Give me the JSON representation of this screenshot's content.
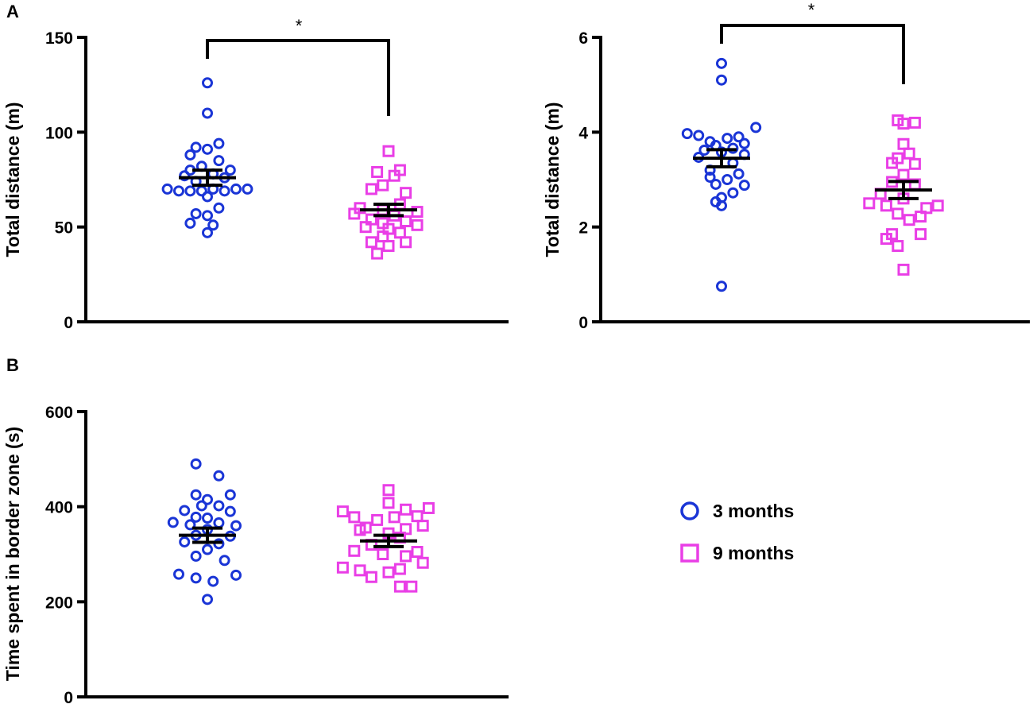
{
  "figure": {
    "panel_labels": [
      "A",
      "B"
    ],
    "colors": {
      "three_months": "#1a35d6",
      "nine_months": "#e93ee6",
      "axis": "#000000"
    },
    "legend": {
      "items": [
        {
          "label": "3 months",
          "marker": "circle-icon",
          "color": "#1a35d6"
        },
        {
          "label": "9 months",
          "marker": "square-icon",
          "color": "#e93ee6"
        }
      ]
    }
  },
  "chart_data": [
    {
      "id": "panel-a-left",
      "type": "scatter",
      "panel": "A",
      "title": "",
      "ylabel": "Total distance (m)",
      "xlabel": "",
      "ylim": [
        0,
        150
      ],
      "yticks": [
        0,
        50,
        100,
        150
      ],
      "significance": "*",
      "series": [
        {
          "name": "3 months",
          "marker": "circle",
          "mean": 76,
          "sem": 4,
          "points": [
            {
              "x": 0.0,
              "y": 126
            },
            {
              "x": 0.0,
              "y": 110
            },
            {
              "x": 0.16,
              "y": 94
            },
            {
              "x": -0.16,
              "y": 92
            },
            {
              "x": 0.0,
              "y": 91
            },
            {
              "x": -0.24,
              "y": 88
            },
            {
              "x": 0.16,
              "y": 85
            },
            {
              "x": -0.08,
              "y": 82
            },
            {
              "x": -0.24,
              "y": 80
            },
            {
              "x": 0.32,
              "y": 80
            },
            {
              "x": 0.08,
              "y": 78
            },
            {
              "x": -0.32,
              "y": 77
            },
            {
              "x": 0.24,
              "y": 76
            },
            {
              "x": -0.16,
              "y": 74
            },
            {
              "x": -0.56,
              "y": 70
            },
            {
              "x": -0.4,
              "y": 69
            },
            {
              "x": -0.24,
              "y": 69
            },
            {
              "x": -0.08,
              "y": 69
            },
            {
              "x": 0.08,
              "y": 70
            },
            {
              "x": 0.24,
              "y": 69
            },
            {
              "x": 0.4,
              "y": 70
            },
            {
              "x": 0.56,
              "y": 70
            },
            {
              "x": 0.0,
              "y": 66
            },
            {
              "x": 0.16,
              "y": 60
            },
            {
              "x": -0.16,
              "y": 57
            },
            {
              "x": 0.0,
              "y": 56
            },
            {
              "x": -0.24,
              "y": 52
            },
            {
              "x": 0.08,
              "y": 51
            },
            {
              "x": 0.0,
              "y": 47
            }
          ]
        },
        {
          "name": "9 months",
          "marker": "square",
          "mean": 59,
          "sem": 3,
          "points": [
            {
              "x": 0.0,
              "y": 90
            },
            {
              "x": 0.16,
              "y": 80
            },
            {
              "x": -0.16,
              "y": 79
            },
            {
              "x": 0.08,
              "y": 77
            },
            {
              "x": -0.08,
              "y": 72
            },
            {
              "x": -0.24,
              "y": 70
            },
            {
              "x": 0.24,
              "y": 68
            },
            {
              "x": 0.16,
              "y": 62
            },
            {
              "x": -0.4,
              "y": 60
            },
            {
              "x": -0.08,
              "y": 59
            },
            {
              "x": 0.4,
              "y": 58
            },
            {
              "x": -0.48,
              "y": 57
            },
            {
              "x": 0.08,
              "y": 56
            },
            {
              "x": -0.24,
              "y": 54
            },
            {
              "x": 0.24,
              "y": 53
            },
            {
              "x": -0.08,
              "y": 52
            },
            {
              "x": 0.4,
              "y": 51
            },
            {
              "x": -0.32,
              "y": 50
            },
            {
              "x": 0.0,
              "y": 49
            },
            {
              "x": 0.16,
              "y": 47
            },
            {
              "x": -0.08,
              "y": 45
            },
            {
              "x": -0.24,
              "y": 42
            },
            {
              "x": 0.24,
              "y": 42
            },
            {
              "x": 0.0,
              "y": 40
            },
            {
              "x": -0.16,
              "y": 36
            }
          ]
        }
      ]
    },
    {
      "id": "panel-a-right",
      "type": "scatter",
      "panel": "A",
      "title": "",
      "ylabel": "Total distance (m)",
      "xlabel": "",
      "ylim": [
        0,
        6
      ],
      "yticks": [
        0,
        2,
        4,
        6
      ],
      "significance": "*",
      "series": [
        {
          "name": "3 months",
          "marker": "circle",
          "mean": 3.45,
          "sem": 0.18,
          "points": [
            {
              "x": 0.0,
              "y": 5.45
            },
            {
              "x": 0.0,
              "y": 5.1
            },
            {
              "x": 0.48,
              "y": 4.1
            },
            {
              "x": -0.48,
              "y": 3.97
            },
            {
              "x": -0.32,
              "y": 3.93
            },
            {
              "x": 0.24,
              "y": 3.9
            },
            {
              "x": 0.08,
              "y": 3.87
            },
            {
              "x": -0.16,
              "y": 3.8
            },
            {
              "x": 0.32,
              "y": 3.76
            },
            {
              "x": -0.08,
              "y": 3.72
            },
            {
              "x": 0.16,
              "y": 3.66
            },
            {
              "x": -0.24,
              "y": 3.62
            },
            {
              "x": 0.0,
              "y": 3.58
            },
            {
              "x": 0.32,
              "y": 3.53
            },
            {
              "x": -0.32,
              "y": 3.47
            },
            {
              "x": 0.16,
              "y": 3.35
            },
            {
              "x": -0.16,
              "y": 3.2
            },
            {
              "x": 0.24,
              "y": 3.12
            },
            {
              "x": -0.16,
              "y": 3.05
            },
            {
              "x": 0.08,
              "y": 3.0
            },
            {
              "x": -0.08,
              "y": 2.9
            },
            {
              "x": 0.32,
              "y": 2.88
            },
            {
              "x": 0.16,
              "y": 2.72
            },
            {
              "x": 0.0,
              "y": 2.62
            },
            {
              "x": -0.08,
              "y": 2.53
            },
            {
              "x": 0.0,
              "y": 2.45
            },
            {
              "x": 0.0,
              "y": 0.75
            }
          ]
        },
        {
          "name": "9 months",
          "marker": "square",
          "mean": 2.78,
          "sem": 0.18,
          "points": [
            {
              "x": -0.08,
              "y": 4.25
            },
            {
              "x": 0.16,
              "y": 4.2
            },
            {
              "x": 0.0,
              "y": 4.18
            },
            {
              "x": 0.0,
              "y": 3.75
            },
            {
              "x": 0.08,
              "y": 3.55
            },
            {
              "x": -0.08,
              "y": 3.45
            },
            {
              "x": -0.16,
              "y": 3.35
            },
            {
              "x": 0.16,
              "y": 3.33
            },
            {
              "x": 0.0,
              "y": 3.1
            },
            {
              "x": -0.16,
              "y": 2.95
            },
            {
              "x": 0.16,
              "y": 2.9
            },
            {
              "x": -0.32,
              "y": 2.7
            },
            {
              "x": 0.0,
              "y": 2.6
            },
            {
              "x": -0.48,
              "y": 2.5
            },
            {
              "x": -0.24,
              "y": 2.45
            },
            {
              "x": 0.48,
              "y": 2.45
            },
            {
              "x": 0.32,
              "y": 2.4
            },
            {
              "x": -0.08,
              "y": 2.28
            },
            {
              "x": 0.24,
              "y": 2.22
            },
            {
              "x": 0.08,
              "y": 2.15
            },
            {
              "x": -0.16,
              "y": 1.85
            },
            {
              "x": 0.24,
              "y": 1.85
            },
            {
              "x": -0.24,
              "y": 1.75
            },
            {
              "x": -0.08,
              "y": 1.6
            },
            {
              "x": 0.0,
              "y": 1.1
            }
          ]
        }
      ]
    },
    {
      "id": "panel-b",
      "type": "scatter",
      "panel": "B",
      "title": "",
      "ylabel": "Time spent in border zone (s)",
      "xlabel": "",
      "ylim": [
        0,
        600
      ],
      "yticks": [
        0,
        200,
        400,
        600
      ],
      "significance": "",
      "series": [
        {
          "name": "3 months",
          "marker": "circle",
          "mean": 340,
          "sem": 15,
          "points": [
            {
              "x": -0.16,
              "y": 490
            },
            {
              "x": 0.16,
              "y": 465
            },
            {
              "x": -0.16,
              "y": 425
            },
            {
              "x": 0.32,
              "y": 425
            },
            {
              "x": 0.0,
              "y": 415
            },
            {
              "x": -0.08,
              "y": 402
            },
            {
              "x": 0.16,
              "y": 402
            },
            {
              "x": -0.32,
              "y": 392
            },
            {
              "x": 0.32,
              "y": 390
            },
            {
              "x": -0.16,
              "y": 378
            },
            {
              "x": 0.0,
              "y": 376
            },
            {
              "x": -0.48,
              "y": 367
            },
            {
              "x": 0.16,
              "y": 366
            },
            {
              "x": -0.24,
              "y": 362
            },
            {
              "x": 0.4,
              "y": 360
            },
            {
              "x": 0.0,
              "y": 352
            },
            {
              "x": -0.16,
              "y": 340
            },
            {
              "x": 0.32,
              "y": 338
            },
            {
              "x": -0.32,
              "y": 326
            },
            {
              "x": 0.16,
              "y": 322
            },
            {
              "x": 0.0,
              "y": 310
            },
            {
              "x": -0.16,
              "y": 296
            },
            {
              "x": 0.24,
              "y": 287
            },
            {
              "x": -0.4,
              "y": 258
            },
            {
              "x": 0.4,
              "y": 256
            },
            {
              "x": -0.16,
              "y": 250
            },
            {
              "x": 0.08,
              "y": 243
            },
            {
              "x": 0.0,
              "y": 205
            }
          ]
        },
        {
          "name": "9 months",
          "marker": "square",
          "mean": 328,
          "sem": 12,
          "points": [
            {
              "x": 0.0,
              "y": 435
            },
            {
              "x": 0.0,
              "y": 408
            },
            {
              "x": 0.56,
              "y": 397
            },
            {
              "x": 0.24,
              "y": 394
            },
            {
              "x": -0.64,
              "y": 390
            },
            {
              "x": -0.48,
              "y": 378
            },
            {
              "x": 0.4,
              "y": 380
            },
            {
              "x": 0.08,
              "y": 378
            },
            {
              "x": -0.16,
              "y": 372
            },
            {
              "x": 0.48,
              "y": 360
            },
            {
              "x": -0.32,
              "y": 356
            },
            {
              "x": 0.24,
              "y": 353
            },
            {
              "x": -0.4,
              "y": 351
            },
            {
              "x": 0.0,
              "y": 344
            },
            {
              "x": 0.16,
              "y": 335
            },
            {
              "x": -0.24,
              "y": 320
            },
            {
              "x": -0.48,
              "y": 307
            },
            {
              "x": 0.4,
              "y": 305
            },
            {
              "x": -0.08,
              "y": 300
            },
            {
              "x": 0.24,
              "y": 296
            },
            {
              "x": 0.48,
              "y": 282
            },
            {
              "x": -0.64,
              "y": 272
            },
            {
              "x": 0.16,
              "y": 269
            },
            {
              "x": -0.4,
              "y": 266
            },
            {
              "x": 0.0,
              "y": 262
            },
            {
              "x": -0.24,
              "y": 252
            },
            {
              "x": 0.16,
              "y": 232
            },
            {
              "x": 0.32,
              "y": 232
            }
          ]
        }
      ]
    }
  ]
}
